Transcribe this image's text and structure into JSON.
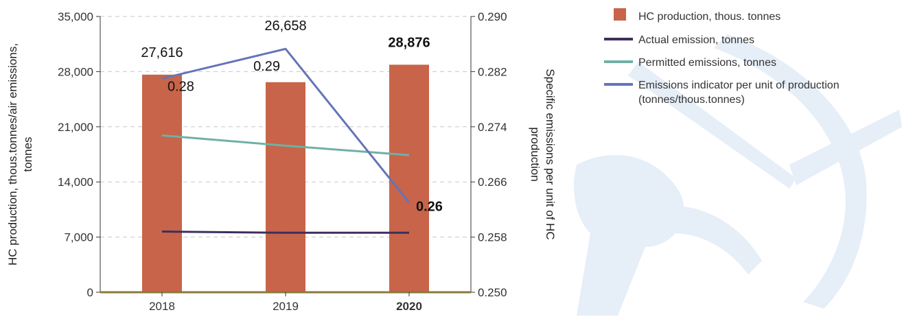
{
  "chart_data": {
    "type": "bar",
    "categories": [
      "2018",
      "2019",
      "2020"
    ],
    "highlight_category": "2020",
    "y_left": {
      "label": "HC production, thous.tonnes/air emissions, tonnes",
      "lim": [
        0,
        35000
      ],
      "ticks": [
        "0",
        "7,000",
        "14,000",
        "21,000",
        "28,000",
        "35,000"
      ],
      "tick_values": [
        0,
        7000,
        14000,
        21000,
        28000,
        35000
      ]
    },
    "y_right": {
      "label": "Specific emissions per unit of HC production",
      "lim": [
        0.25,
        0.29
      ],
      "ticks": [
        "0.250",
        "0.258",
        "0.266",
        "0.274",
        "0.282",
        "0.290"
      ],
      "tick_values": [
        0.25,
        0.258,
        0.266,
        0.274,
        0.282,
        0.29
      ]
    },
    "grid": "horizontal dashed",
    "legend_position": "right",
    "series": [
      {
        "name": "HC production, thous. tonnes",
        "type": "bar",
        "axis": "left",
        "color": "#c8644a",
        "values": [
          27616,
          26658,
          28876
        ],
        "labels": [
          "27,616",
          "26,658",
          "28,876"
        ]
      },
      {
        "name": "Actual emission, tonnes",
        "type": "line",
        "axis": "left",
        "color": "#3d2f5c",
        "values": [
          7700,
          7550,
          7550
        ]
      },
      {
        "name": "Permitted emissions, tonnes",
        "type": "line",
        "axis": "left",
        "color": "#6fb0a6",
        "values": [
          19900,
          18600,
          17400
        ]
      },
      {
        "name": "Emissions indicator per unit of production (tonnes/thous.tonnes)",
        "type": "line",
        "axis": "right",
        "color": "#6474b8",
        "values": [
          0.281,
          0.2853,
          0.263
        ],
        "labels": [
          "0.28",
          "0.29",
          "0.26"
        ]
      }
    ]
  },
  "legend_lines": {
    "s3": [
      "Emissions indicator per unit of production",
      "(tonnes/thous.tonnes)"
    ]
  },
  "colors": {
    "baseline": "#8a7a3a",
    "grid": "#c8c8c8",
    "watermark": "#e6eef8"
  }
}
